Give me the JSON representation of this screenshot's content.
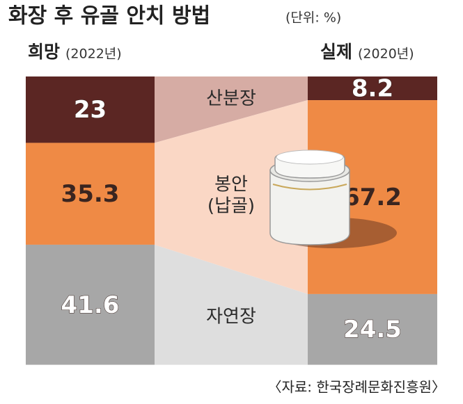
{
  "chart_data": {
    "type": "stacked-flow",
    "title": "화장 후 유골 안치 방법",
    "unit": "(단위: %)",
    "categories": [
      "희망",
      "실제"
    ],
    "category_notes": [
      "(2022년)",
      "(2020년)"
    ],
    "series": [
      {
        "name": "산분장",
        "color": "#5b2623",
        "band_color": "#d6aca4",
        "label_color": "#ffffff",
        "values": [
          23,
          8.2
        ]
      },
      {
        "name": "봉안\n(납골)",
        "color": "#ef8a45",
        "band_color": "#fad7c5",
        "label_color": "#3a2520",
        "values": [
          35.3,
          67.2
        ]
      },
      {
        "name": "자연장",
        "color": "#a7a7a7",
        "band_color": "#dedede",
        "label_color": "#ffffff",
        "values": [
          41.6,
          24.5
        ]
      }
    ],
    "ylim": [
      0,
      100
    ],
    "source": "〈자료: 한국장례문화진흥원〉"
  }
}
